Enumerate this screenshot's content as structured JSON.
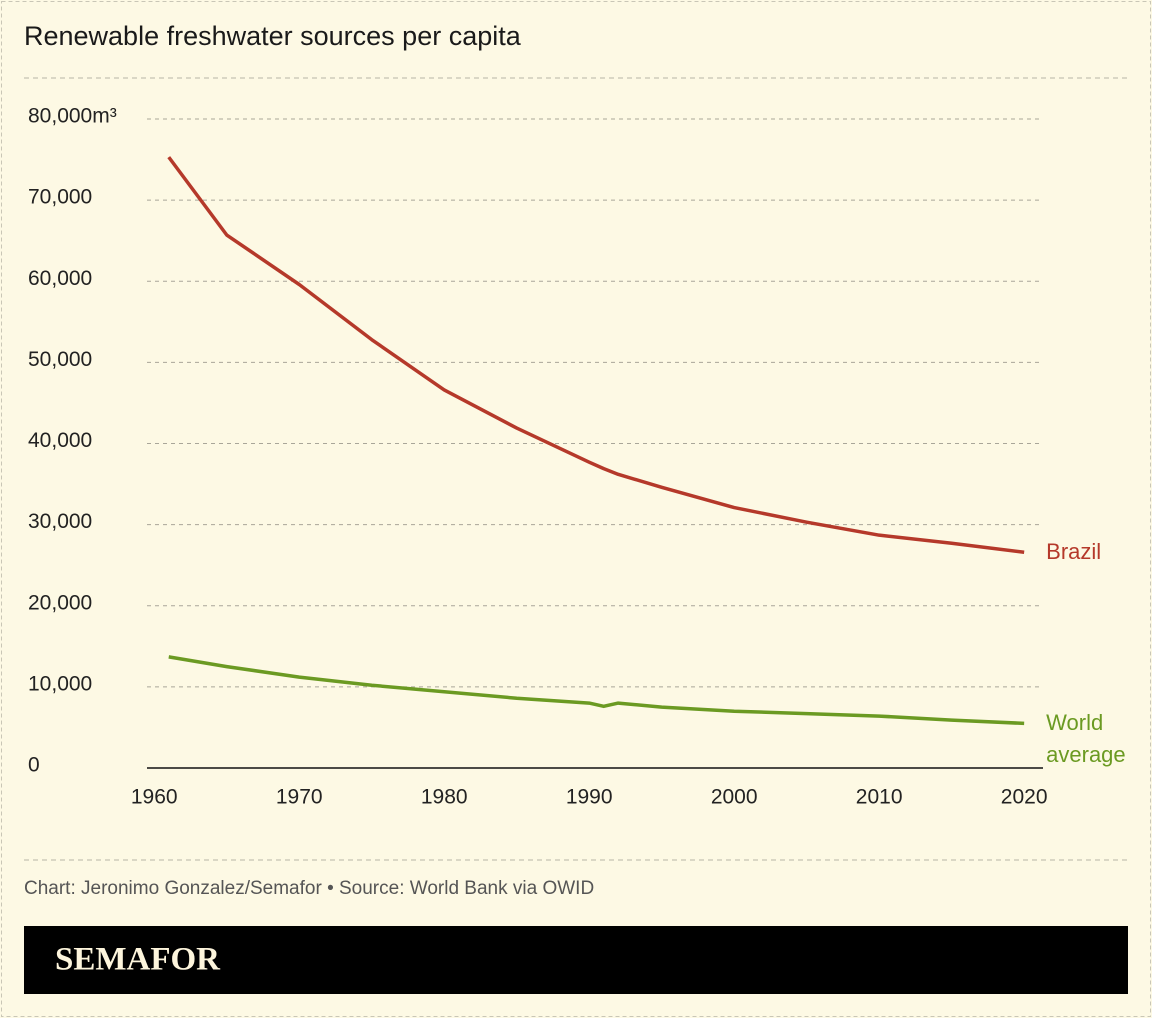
{
  "chart_data": {
    "type": "line",
    "title": "Renewable freshwater sources per capita",
    "x": [
      1961,
      1965,
      1970,
      1975,
      1980,
      1985,
      1990,
      1991,
      1992,
      1995,
      2000,
      2005,
      2010,
      2015,
      2020
    ],
    "series": [
      {
        "name": "Brazil",
        "color": "#b5392a",
        "values": [
          75300,
          65700,
          59600,
          52800,
          46600,
          41900,
          37700,
          36900,
          36200,
          34600,
          32100,
          30300,
          28700,
          27700,
          26600
        ]
      },
      {
        "name": "World average",
        "color": "#6b9a22",
        "values": [
          13700,
          12500,
          11200,
          10200,
          9400,
          8600,
          8000,
          7600,
          8000,
          7500,
          7000,
          6700,
          6400,
          5900,
          5500
        ]
      }
    ],
    "xlim": [
      1959.5,
      2021.3
    ],
    "xticks": [
      1960,
      1970,
      1980,
      1990,
      2000,
      2010,
      2020
    ],
    "ylim": [
      0,
      80000
    ],
    "yticks": [
      0,
      {
        "value": 10000,
        "label": "10,000"
      },
      {
        "value": 20000,
        "label": "20,000"
      },
      {
        "value": 30000,
        "label": "30,000"
      },
      {
        "value": 40000,
        "label": "40,000"
      },
      {
        "value": 50000,
        "label": "50,000"
      },
      {
        "value": 60000,
        "label": "60,000"
      },
      {
        "value": 70000,
        "label": "70,000"
      },
      {
        "value": 80000,
        "label": "80,000m³"
      }
    ],
    "grid": true
  },
  "footer": {
    "credit": "Chart: Jeronimo Gonzalez/Semafor • Source: World Bank via OWID",
    "brand": "SEMAFOR"
  }
}
